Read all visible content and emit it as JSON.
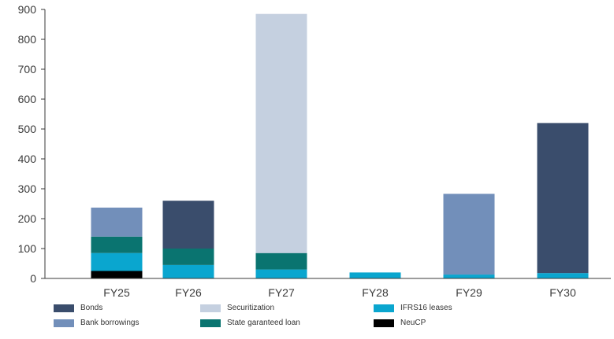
{
  "chart_data": {
    "type": "bar",
    "stacked": true,
    "categories": [
      "FY25",
      "FY26",
      "FY27",
      "FY28",
      "FY29",
      "FY30"
    ],
    "ylim": [
      0,
      900
    ],
    "yticks": [
      0,
      100,
      200,
      300,
      400,
      500,
      600,
      700,
      800,
      900
    ],
    "series": [
      {
        "name": "NeuCP",
        "color": "#000000",
        "values": [
          25,
          0,
          0,
          0,
          0,
          0
        ]
      },
      {
        "name": "IFRS16 leases",
        "color": "#0aa6cf",
        "values": [
          60,
          45,
          30,
          20,
          13,
          18
        ]
      },
      {
        "name": "State garanteed loan",
        "color": "#0a7470",
        "values": [
          55,
          55,
          55,
          0,
          0,
          0
        ]
      },
      {
        "name": "Bank borrowings",
        "color": "#728fba",
        "values": [
          97,
          0,
          0,
          0,
          270,
          0
        ]
      },
      {
        "name": "Securitization",
        "color": "#c5d0e0",
        "values": [
          0,
          0,
          800,
          0,
          0,
          0
        ]
      },
      {
        "name": "Bonds",
        "color": "#3a4d6c",
        "values": [
          0,
          160,
          0,
          0,
          0,
          502
        ]
      }
    ],
    "legend": [
      {
        "name": "Bonds",
        "color": "#3a4d6c"
      },
      {
        "name": "Securitization",
        "color": "#c5d0e0"
      },
      {
        "name": "IFRS16 leases",
        "color": "#0aa6cf"
      },
      {
        "name": "Bank borrowings",
        "color": "#728fba"
      },
      {
        "name": "State garanteed loan",
        "color": "#0a7470"
      },
      {
        "name": "NeuCP",
        "color": "#000000"
      }
    ],
    "title": "",
    "xlabel": "",
    "ylabel": "",
    "grid": false,
    "legend_position": "bottom"
  }
}
